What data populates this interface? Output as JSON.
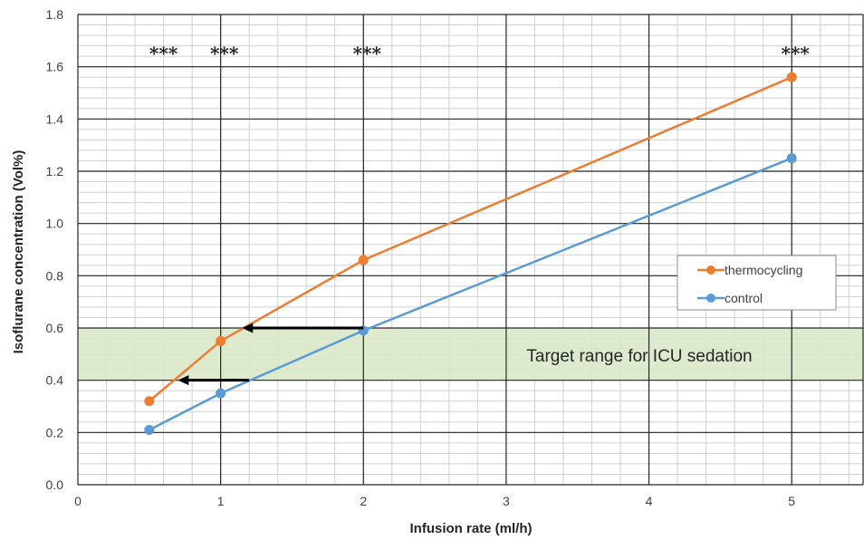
{
  "chart_data": {
    "type": "line",
    "xlabel": "Infusion rate (ml/h)",
    "ylabel": "Isoflurane concentration (Vol%)",
    "xlim": [
      0,
      5.5
    ],
    "ylim": [
      0,
      1.8
    ],
    "x_ticks": [
      "0",
      "1",
      "2",
      "3",
      "4",
      "5"
    ],
    "y_ticks": [
      "0.0",
      "0.2",
      "0.4",
      "0.6",
      "0.8",
      "1.0",
      "1.2",
      "1.4",
      "1.6",
      "1.8"
    ],
    "grid": true,
    "legend_position": "right",
    "series": [
      {
        "name": "thermocycling",
        "color": "#ED7D31",
        "x": [
          0.5,
          1,
          2,
          5
        ],
        "y": [
          0.32,
          0.55,
          0.86,
          1.56
        ]
      },
      {
        "name": "control",
        "color": "#5B9BD5",
        "x": [
          0.5,
          1,
          2,
          5
        ],
        "y": [
          0.21,
          0.35,
          0.59,
          1.25
        ]
      }
    ],
    "target_band": {
      "label": "Target range for ICU sedation",
      "y_range": [
        0.4,
        0.6
      ],
      "color": "#D9E8C9"
    },
    "significance": [
      {
        "x": 0.5,
        "label": "***"
      },
      {
        "x": 1,
        "label": "***"
      },
      {
        "x": 2,
        "label": "***"
      },
      {
        "x": 5,
        "label": "***"
      }
    ],
    "arrows": [
      {
        "y": 0.6,
        "from_x": 2,
        "to_x": 1.15
      },
      {
        "y": 0.4,
        "from_x": 1.2,
        "to_x": 0.7
      }
    ]
  }
}
